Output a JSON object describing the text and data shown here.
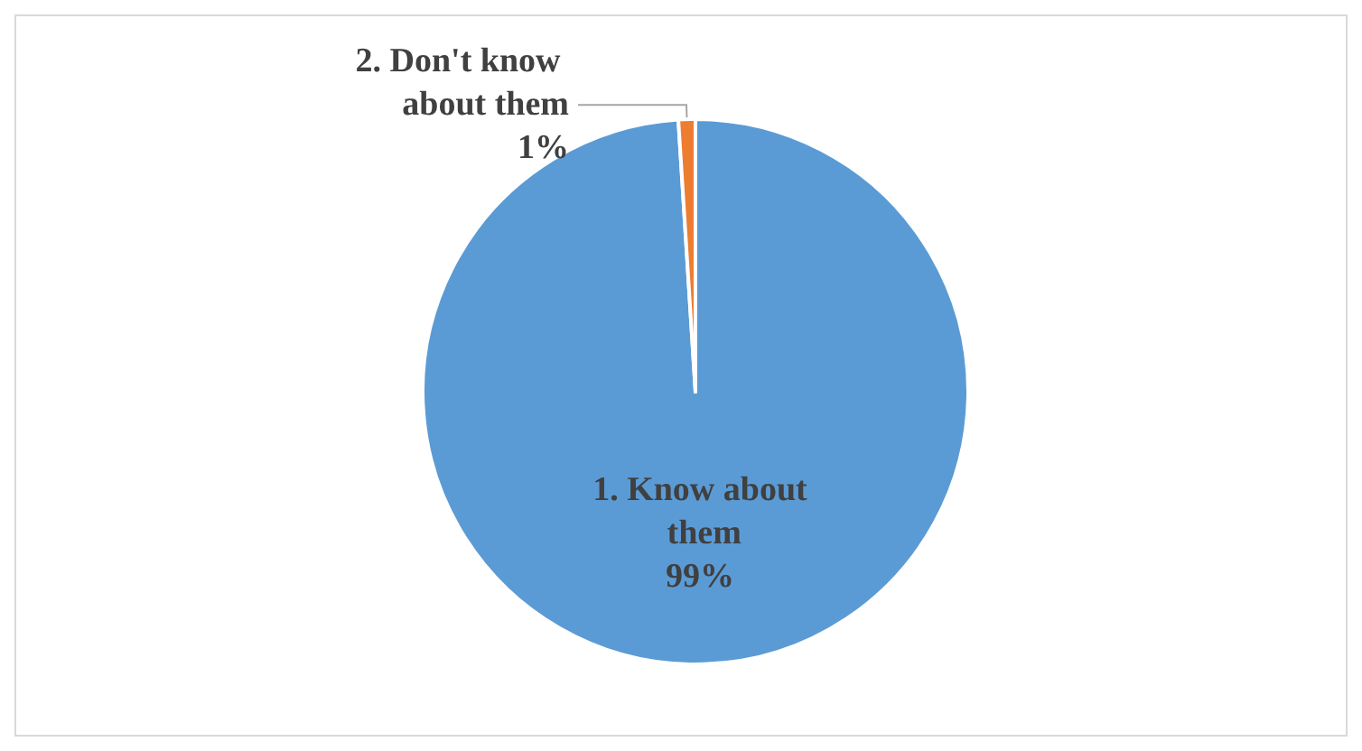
{
  "chart_data": {
    "type": "pie",
    "categories": [
      "1. Know about them",
      "2. Don't know about them"
    ],
    "values": [
      99,
      1
    ],
    "colors": [
      "#5b9bd5",
      "#ed7d31"
    ],
    "value_labels": [
      "99%",
      "1%"
    ],
    "legend": false
  }
}
